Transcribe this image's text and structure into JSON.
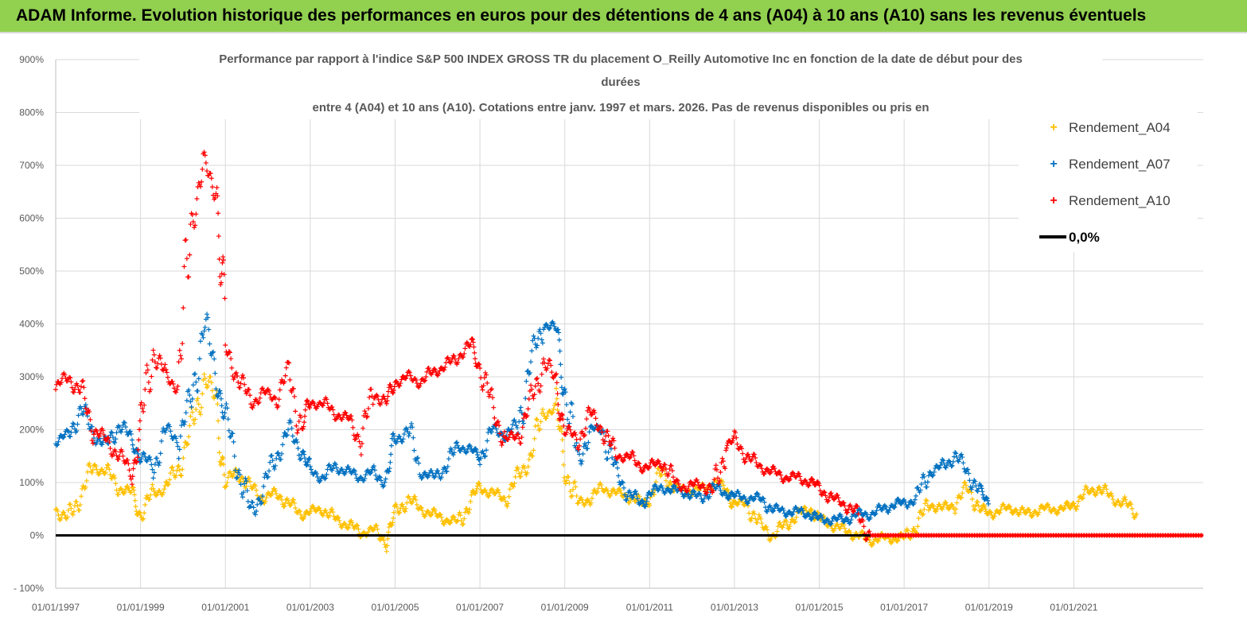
{
  "header": {
    "title": "ADAM Informe. Evolution historique des performances en euros pour des détentions de 4 ans (A04) à 10 ans (A10) sans les revenus éventuels"
  },
  "colors": {
    "header_bg": "#92d050",
    "a04": "#ffc000",
    "a07": "#0070c0",
    "a10": "#ff0000",
    "zero": "#000000"
  },
  "chart_data": {
    "type": "scatter",
    "title_lines": [
      "Performance par rapport à l'indice S&P 500 INDEX GROSS TR  du placement O_Reilly Automotive Inc en fonction de la date de début pour des",
      "durées",
      "entre 4 (A04) et 10 ans (A10).  Cotations entre janv. 1997 et mars. 2026.  Pas de  revenus disponibles ou pris en"
    ],
    "xlabel": "",
    "ylabel": "",
    "x_range": [
      1997.0,
      2024.05
    ],
    "ylim": [
      -100,
      900
    ],
    "y_ticks": [
      -100,
      0,
      100,
      200,
      300,
      400,
      500,
      600,
      700,
      800,
      900
    ],
    "y_tick_labels": [
      "- 100%",
      "0%",
      "100%",
      "200%",
      "300%",
      "400%",
      "500%",
      "600%",
      "700%",
      "800%",
      "900%"
    ],
    "x_ticks": [
      1997,
      1999,
      2001,
      2003,
      2005,
      2007,
      2009,
      2011,
      2013,
      2015,
      2017,
      2019,
      2021
    ],
    "x_tick_labels": [
      "01/01/1997",
      "01/01/1999",
      "01/01/2001",
      "01/01/2003",
      "01/01/2005",
      "01/01/2007",
      "01/01/2009",
      "01/01/2011",
      "01/01/2013",
      "01/01/2015",
      "01/01/2017",
      "01/01/2019",
      "01/01/2021"
    ],
    "legend": [
      "Rendement_A04",
      "Rendement_A07",
      "Rendement_A10",
      "0,0%"
    ],
    "series": [
      {
        "name": "Rendement_A04",
        "x": [
          1997.0,
          1997.3,
          1997.6,
          1997.9,
          1998.2,
          1998.5,
          1998.8,
          1999.0,
          1999.3,
          1999.6,
          1999.9,
          2000.2,
          2000.5,
          2000.8,
          2001.0,
          2001.3,
          2001.6,
          2001.9,
          2002.2,
          2002.5,
          2002.8,
          2003.0,
          2003.3,
          2003.6,
          2003.9,
          2004.2,
          2004.5,
          2004.8,
          2005.0,
          2005.3,
          2005.6,
          2005.9,
          2006.2,
          2006.5,
          2006.8,
          2007.0,
          2007.3,
          2007.6,
          2007.9,
          2008.2,
          2008.5,
          2008.8,
          2009.0,
          2009.3,
          2009.6,
          2009.9,
          2010.2,
          2010.5,
          2010.8,
          2011.0,
          2011.3,
          2011.6,
          2011.9,
          2012.2,
          2012.5,
          2012.8,
          2013.0,
          2013.3,
          2013.6,
          2013.9,
          2014.2,
          2014.5,
          2014.8,
          2015.0,
          2015.3,
          2015.6,
          2015.9,
          2016.2,
          2016.5,
          2016.8,
          2017.0,
          2017.3,
          2017.6,
          2017.9,
          2018.2,
          2018.5,
          2018.8,
          2019.0,
          2019.3,
          2019.6,
          2019.9,
          2020.2,
          2020.5,
          2020.8,
          2021.0,
          2021.3,
          2021.6,
          2021.9,
          2022.2,
          2022.5
        ],
        "y": [
          50,
          30,
          80,
          130,
          120,
          90,
          80,
          40,
          80,
          90,
          130,
          200,
          300,
          250,
          100,
          120,
          90,
          70,
          80,
          60,
          40,
          45,
          50,
          30,
          20,
          5,
          10,
          -10,
          40,
          70,
          50,
          40,
          30,
          25,
          70,
          90,
          80,
          70,
          110,
          150,
          230,
          240,
          130,
          60,
          70,
          90,
          80,
          75,
          60,
          70,
          120,
          90,
          85,
          85,
          100,
          90,
          60,
          60,
          20,
          0,
          20,
          40,
          50,
          30,
          20,
          10,
          0,
          -10,
          -5,
          -5,
          -5,
          20,
          60,
          50,
          60,
          90,
          50,
          40,
          50,
          50,
          40,
          50,
          50,
          50,
          60,
          80,
          90,
          70,
          60,
          40
        ]
      },
      {
        "name": "Rendement_A07",
        "x": [
          1997.0,
          1997.3,
          1997.6,
          1997.9,
          1998.2,
          1998.5,
          1998.8,
          1999.0,
          1999.3,
          1999.6,
          1999.9,
          2000.2,
          2000.5,
          2000.8,
          2001.0,
          2001.3,
          2001.6,
          2001.9,
          2002.2,
          2002.5,
          2002.8,
          2003.0,
          2003.3,
          2003.6,
          2003.9,
          2004.2,
          2004.5,
          2004.8,
          2005.0,
          2005.3,
          2005.6,
          2005.9,
          2006.2,
          2006.5,
          2006.8,
          2007.0,
          2007.3,
          2007.6,
          2007.9,
          2008.2,
          2008.5,
          2008.8,
          2009.0,
          2009.3,
          2009.6,
          2009.9,
          2010.2,
          2010.5,
          2010.8,
          2011.0,
          2011.3,
          2011.6,
          2011.9,
          2012.2,
          2012.5,
          2012.8,
          2013.0,
          2013.3,
          2013.6,
          2013.9,
          2014.2,
          2014.5,
          2014.8,
          2015.0,
          2015.3,
          2015.6,
          2015.9,
          2016.2,
          2016.5,
          2016.8,
          2017.0,
          2017.3,
          2017.6,
          2017.9,
          2018.2,
          2018.5,
          2018.8,
          2019.0
        ],
        "y": [
          180,
          190,
          240,
          190,
          170,
          210,
          180,
          150,
          130,
          200,
          180,
          260,
          400,
          300,
          220,
          130,
          40,
          90,
          150,
          200,
          160,
          120,
          110,
          130,
          120,
          110,
          120,
          100,
          180,
          200,
          120,
          110,
          130,
          170,
          160,
          150,
          200,
          190,
          210,
          330,
          400,
          390,
          280,
          140,
          200,
          200,
          120,
          80,
          60,
          80,
          90,
          85,
          80,
          70,
          90,
          80,
          75,
          70,
          70,
          50,
          45,
          45,
          40,
          30,
          30,
          30,
          40,
          40,
          50,
          60,
          60,
          70,
          120,
          130,
          150,
          120,
          80,
          60
        ]
      },
      {
        "name": "Rendement_A10",
        "x": [
          1997.0,
          1997.3,
          1997.6,
          1997.9,
          1998.2,
          1998.5,
          1998.8,
          1999.0,
          1999.3,
          1999.6,
          1999.9,
          2000.2,
          2000.5,
          2000.8,
          2001.0,
          2001.3,
          2001.6,
          2001.9,
          2002.2,
          2002.5,
          2002.8,
          2003.0,
          2003.3,
          2003.6,
          2003.9,
          2004.2,
          2004.5,
          2004.8,
          2005.0,
          2005.3,
          2005.6,
          2005.9,
          2006.2,
          2006.5,
          2006.8,
          2007.0,
          2007.3,
          2007.6,
          2007.9,
          2008.2,
          2008.5,
          2008.8,
          2009.0,
          2009.3,
          2009.6,
          2009.9,
          2010.2,
          2010.5,
          2010.8,
          2011.0,
          2011.3,
          2011.6,
          2011.9,
          2012.2,
          2012.5,
          2012.8,
          2013.0,
          2013.3,
          2013.6,
          2013.9,
          2014.2,
          2014.5,
          2014.8,
          2015.0,
          2015.3,
          2015.6,
          2015.9,
          2016.2
        ],
        "y": [
          280,
          300,
          270,
          200,
          180,
          150,
          120,
          200,
          350,
          300,
          280,
          600,
          700,
          650,
          350,
          300,
          250,
          270,
          260,
          310,
          200,
          250,
          250,
          230,
          220,
          180,
          270,
          250,
          290,
          300,
          290,
          310,
          320,
          340,
          360,
          320,
          240,
          180,
          190,
          250,
          330,
          290,
          200,
          180,
          230,
          200,
          150,
          150,
          130,
          130,
          140,
          100,
          90,
          100,
          80,
          170,
          180,
          150,
          130,
          120,
          110,
          110,
          100,
          90,
          70,
          60,
          40,
          0
        ]
      },
      {
        "name": "0,0%",
        "x": [
          1997.0,
          2024.05
        ],
        "y": [
          0,
          0
        ]
      }
    ],
    "a10_zero_run": {
      "x_start": 2016.2,
      "x_end": 2024.05,
      "y": 0
    }
  }
}
